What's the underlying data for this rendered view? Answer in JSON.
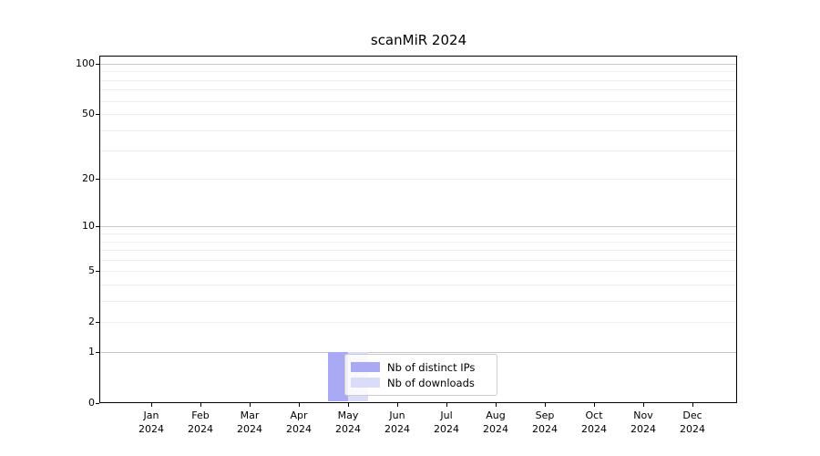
{
  "title": "scanMiR 2024",
  "chart_data": {
    "type": "bar",
    "title": "scanMiR 2024",
    "x_categories": [
      {
        "month": "Jan",
        "year": "2024"
      },
      {
        "month": "Feb",
        "year": "2024"
      },
      {
        "month": "Mar",
        "year": "2024"
      },
      {
        "month": "Apr",
        "year": "2024"
      },
      {
        "month": "May",
        "year": "2024"
      },
      {
        "month": "Jun",
        "year": "2024"
      },
      {
        "month": "Jul",
        "year": "2024"
      },
      {
        "month": "Aug",
        "year": "2024"
      },
      {
        "month": "Sep",
        "year": "2024"
      },
      {
        "month": "Oct",
        "year": "2024"
      },
      {
        "month": "Nov",
        "year": "2024"
      },
      {
        "month": "Dec",
        "year": "2024"
      }
    ],
    "series": [
      {
        "name": "Nb of distinct IPs",
        "color": "#a9aaf3",
        "values": [
          0,
          0,
          0,
          0,
          1,
          0,
          0,
          0,
          0,
          0,
          0,
          0
        ]
      },
      {
        "name": "Nb of downloads",
        "color": "#dbdcf9",
        "values": [
          0,
          0,
          0,
          0,
          1,
          0,
          0,
          0,
          0,
          0,
          0,
          0
        ]
      }
    ],
    "yscale": "log1p",
    "ylim": [
      0,
      100
    ],
    "ytick_labels": [
      0,
      1,
      2,
      5,
      10,
      20,
      50,
      100
    ],
    "grid_major": [
      1,
      10,
      100
    ],
    "grid_minor": [
      2,
      3,
      4,
      5,
      6,
      7,
      8,
      9,
      20,
      30,
      40,
      50,
      60,
      70,
      80,
      90
    ],
    "grid": true,
    "legend_position": "lower-center",
    "xlabel": "",
    "ylabel": ""
  },
  "colors": {
    "axis": "#000000",
    "grid_major": "#c9c9c9",
    "grid_minor": "#efefef",
    "background": "#ffffff",
    "legend_border": "#cccccc"
  }
}
